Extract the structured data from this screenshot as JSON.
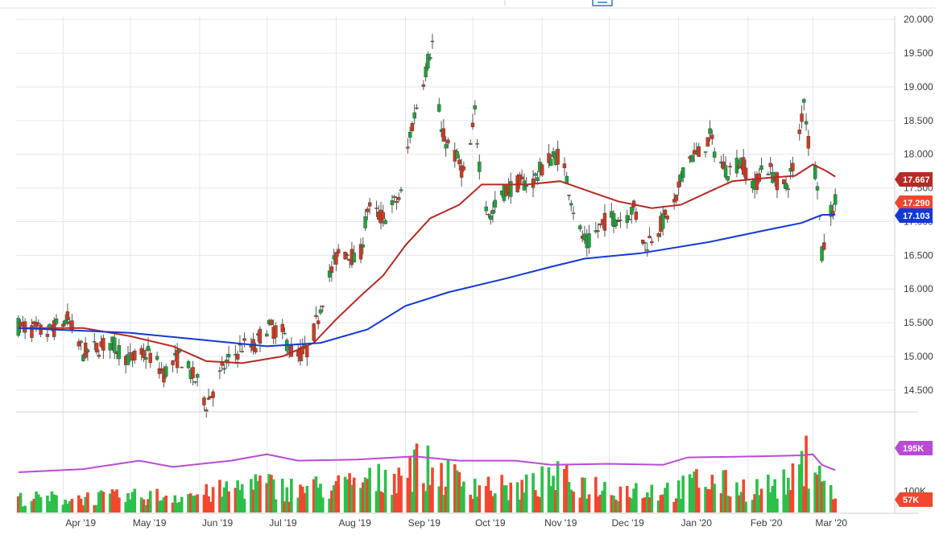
{
  "chart_data": [
    {
      "type": "candlestick",
      "title": "",
      "colors": {
        "up": "#1fa33a",
        "down": "#cf3b22",
        "wick": "#555555",
        "sma_fast": "#b52a24",
        "sma_slow": "#1438d6",
        "grid": "#e6e6e6"
      },
      "x_labels": [
        "Apr '19",
        "May '19",
        "Jun '19",
        "Jul '19",
        "Aug '19",
        "Sep '19",
        "Oct '19",
        "Nov '19",
        "Dec '19",
        "Jan '20",
        "Feb '20",
        "Mar '20"
      ],
      "xlim": [
        "2019-03-11",
        "2020-03-12"
      ],
      "ylim": [
        14.2,
        20.05
      ],
      "y_ticks": [
        "14.500",
        "15.000",
        "15.500",
        "16.000",
        "16.500",
        "17.000",
        "17.500",
        "18.000",
        "18.500",
        "19.000",
        "19.500",
        "20.000"
      ],
      "price_path": [
        [
          "2019-03-12",
          15.45
        ],
        [
          "2019-03-25",
          15.35
        ],
        [
          "2019-04-03",
          15.55
        ],
        [
          "2019-04-10",
          15.05
        ],
        [
          "2019-04-22",
          15.2
        ],
        [
          "2019-05-01",
          14.95
        ],
        [
          "2019-05-09",
          15.05
        ],
        [
          "2019-05-16",
          14.75
        ],
        [
          "2019-05-23",
          15.0
        ],
        [
          "2019-06-01",
          14.55
        ],
        [
          "2019-06-04",
          14.3
        ],
        [
          "2019-06-07",
          14.5
        ],
        [
          "2019-06-12",
          14.85
        ],
        [
          "2019-06-20",
          15.15
        ],
        [
          "2019-06-26",
          15.15
        ],
        [
          "2019-06-30",
          15.45
        ],
        [
          "2019-07-08",
          15.35
        ],
        [
          "2019-07-13",
          15.0
        ],
        [
          "2019-07-20",
          15.1
        ],
        [
          "2019-07-27",
          16.0
        ],
        [
          "2019-08-02",
          16.55
        ],
        [
          "2019-08-07",
          16.55
        ],
        [
          "2019-08-11",
          16.3
        ],
        [
          "2019-08-15",
          17.2
        ],
        [
          "2019-08-22",
          17.05
        ],
        [
          "2019-08-30",
          17.4
        ],
        [
          "2019-09-03",
          18.3
        ],
        [
          "2019-09-08",
          19.0
        ],
        [
          "2019-09-13",
          19.65
        ],
        [
          "2019-09-17",
          18.3
        ],
        [
          "2019-09-22",
          18.05
        ],
        [
          "2019-09-28",
          17.65
        ],
        [
          "2019-10-02",
          18.6
        ],
        [
          "2019-10-05",
          17.5
        ],
        [
          "2019-10-09",
          17.05
        ],
        [
          "2019-10-13",
          17.4
        ],
        [
          "2019-10-20",
          17.55
        ],
        [
          "2019-10-28",
          17.6
        ],
        [
          "2019-11-03",
          17.9
        ],
        [
          "2019-11-09",
          18.0
        ],
        [
          "2019-11-13",
          17.5
        ],
        [
          "2019-11-17",
          16.9
        ],
        [
          "2019-11-21",
          16.65
        ],
        [
          "2019-11-30",
          17.05
        ],
        [
          "2019-12-07",
          17.05
        ],
        [
          "2019-12-12",
          17.2
        ],
        [
          "2019-12-17",
          16.65
        ],
        [
          "2019-12-24",
          16.95
        ],
        [
          "2019-12-31",
          17.3
        ],
        [
          "2020-01-04",
          17.95
        ],
        [
          "2020-01-10",
          18.0
        ],
        [
          "2020-01-15",
          18.25
        ],
        [
          "2020-01-19",
          17.9
        ],
        [
          "2020-01-23",
          17.75
        ],
        [
          "2020-01-29",
          17.9
        ],
        [
          "2020-02-04",
          17.5
        ],
        [
          "2020-02-08",
          17.9
        ],
        [
          "2020-02-14",
          17.6
        ],
        [
          "2020-02-18",
          17.5
        ],
        [
          "2020-02-22",
          17.9
        ],
        [
          "2020-02-24",
          18.3
        ],
        [
          "2020-02-26",
          18.85
        ],
        [
          "2020-02-28",
          18.2
        ],
        [
          "2020-03-01",
          17.95
        ],
        [
          "2020-03-03",
          17.6
        ],
        [
          "2020-03-05",
          16.5
        ],
        [
          "2020-03-07",
          16.8
        ],
        [
          "2020-03-09",
          17.15
        ],
        [
          "2020-03-11",
          17.29
        ]
      ],
      "series": [
        {
          "values": [
            [
              "2019-03-12",
              15.42
            ],
            [
              "2019-04-10",
              15.42
            ],
            [
              "2019-05-01",
              15.3
            ],
            [
              "2019-05-20",
              15.15
            ],
            [
              "2019-06-04",
              14.93
            ],
            [
              "2019-06-20",
              14.9
            ],
            [
              "2019-07-08",
              15.0
            ],
            [
              "2019-07-22",
              15.2
            ],
            [
              "2019-08-01",
              15.55
            ],
            [
              "2019-08-12",
              15.9
            ],
            [
              "2019-08-22",
              16.2
            ],
            [
              "2019-09-01",
              16.65
            ],
            [
              "2019-09-12",
              17.05
            ],
            [
              "2019-09-25",
              17.25
            ],
            [
              "2019-10-05",
              17.55
            ],
            [
              "2019-10-25",
              17.55
            ],
            [
              "2019-11-09",
              17.6
            ],
            [
              "2019-11-22",
              17.45
            ],
            [
              "2019-12-05",
              17.3
            ],
            [
              "2019-12-20",
              17.2
            ],
            [
              "2020-01-02",
              17.25
            ],
            [
              "2020-01-15",
              17.45
            ],
            [
              "2020-01-25",
              17.6
            ],
            [
              "2020-02-10",
              17.65
            ],
            [
              "2020-02-22",
              17.68
            ],
            [
              "2020-03-01",
              17.85
            ],
            [
              "2020-03-07",
              17.75
            ],
            [
              "2020-03-11",
              17.667
            ]
          ]
        },
        {
          "values": [
            [
              "2019-03-12",
              15.42
            ],
            [
              "2019-05-01",
              15.35
            ],
            [
              "2019-06-01",
              15.25
            ],
            [
              "2019-07-01",
              15.15
            ],
            [
              "2019-07-25",
              15.2
            ],
            [
              "2019-08-15",
              15.4
            ],
            [
              "2019-09-01",
              15.75
            ],
            [
              "2019-09-20",
              15.95
            ],
            [
              "2019-10-15",
              16.15
            ],
            [
              "2019-11-05",
              16.33
            ],
            [
              "2019-11-20",
              16.45
            ],
            [
              "2019-12-15",
              16.53
            ],
            [
              "2020-01-15",
              16.7
            ],
            [
              "2020-02-10",
              16.88
            ],
            [
              "2020-02-25",
              16.98
            ],
            [
              "2020-03-05",
              17.1
            ],
            [
              "2020-03-11",
              17.103
            ]
          ]
        }
      ],
      "price_tags": [
        {
          "label": "17.667",
          "value": 17.667,
          "color": "#b52a24"
        },
        {
          "label": "17.290",
          "value": 17.29,
          "color": "#f2462e"
        },
        {
          "label": "17.103",
          "value": 17.103,
          "color": "#1438d6"
        }
      ]
    },
    {
      "type": "bar",
      "title": "",
      "y_ticks": [
        "100K"
      ],
      "ylim": [
        0,
        460000
      ],
      "colors": {
        "up": "#2cbf4a",
        "down": "#f2462e",
        "average": "#b94ad6"
      },
      "volume_profile": [
        [
          "2019-03-12",
          80000
        ],
        [
          "2019-05-01",
          90000
        ],
        [
          "2019-06-05",
          110000
        ],
        [
          "2019-06-25",
          170000
        ],
        [
          "2019-07-10",
          140000
        ],
        [
          "2019-08-01",
          150000
        ],
        [
          "2019-08-20",
          190000
        ],
        [
          "2019-09-05",
          280000
        ],
        [
          "2019-09-25",
          190000
        ],
        [
          "2019-10-20",
          130000
        ],
        [
          "2019-11-07",
          200000
        ],
        [
          "2019-12-01",
          140000
        ],
        [
          "2020-01-01",
          130000
        ],
        [
          "2020-01-10",
          190000
        ],
        [
          "2020-02-01",
          140000
        ],
        [
          "2020-02-20",
          170000
        ],
        [
          "2020-03-01",
          360000
        ],
        [
          "2020-03-11",
          60000
        ]
      ],
      "average_path": [
        [
          "2019-03-12",
          190000
        ],
        [
          "2019-04-10",
          205000
        ],
        [
          "2019-05-05",
          245000
        ],
        [
          "2019-05-20",
          215000
        ],
        [
          "2019-06-15",
          245000
        ],
        [
          "2019-07-01",
          275000
        ],
        [
          "2019-07-15",
          245000
        ],
        [
          "2019-08-10",
          250000
        ],
        [
          "2019-09-05",
          265000
        ],
        [
          "2019-09-25",
          245000
        ],
        [
          "2019-10-20",
          245000
        ],
        [
          "2019-11-05",
          225000
        ],
        [
          "2019-12-01",
          230000
        ],
        [
          "2019-12-25",
          225000
        ],
        [
          "2020-01-05",
          260000
        ],
        [
          "2020-02-05",
          265000
        ],
        [
          "2020-02-25",
          270000
        ],
        [
          "2020-03-01",
          275000
        ],
        [
          "2020-03-05",
          225000
        ],
        [
          "2020-03-11",
          200000
        ]
      ],
      "value_tags": [
        {
          "label": "195K",
          "value": 195000,
          "color": "#b94ad6"
        },
        {
          "label": "57K",
          "value": 57000,
          "color": "#f2462e"
        }
      ]
    }
  ]
}
